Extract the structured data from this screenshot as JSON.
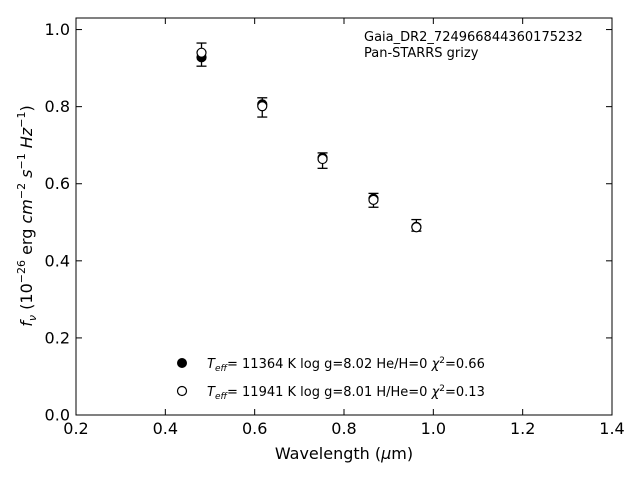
{
  "chart_data": {
    "type": "scatter",
    "xlabel_main": "Wavelength (",
    "xlabel_mu": "μ",
    "xlabel_unit": "m)",
    "ylabel": {
      "f": "f",
      "nu": "ν",
      "open": " (10",
      "exp1": "−26",
      "erg": " erg ",
      "cm": "cm",
      "exp2": "−2",
      "s": " s",
      "exp3": "−1",
      "hz": " Hz",
      "exp4": "−1",
      "close": ")"
    },
    "xlim": [
      0.2,
      1.4
    ],
    "ylim": [
      0.0,
      1.03
    ],
    "xticks": [
      0.2,
      0.4,
      0.6,
      0.8,
      1.0,
      1.2,
      1.4
    ],
    "xtick_labels": [
      "0.2",
      "0.4",
      "0.6",
      "0.8",
      "1.0",
      "1.2",
      "1.4"
    ],
    "yticks": [
      0.0,
      0.2,
      0.4,
      0.6,
      0.8,
      1.0
    ],
    "ytick_labels": [
      "0.0",
      "0.2",
      "0.4",
      "0.6",
      "0.8",
      "1.0"
    ],
    "annotation": [
      "Gaia_DR2_724966844360175232",
      "Pan-STARRS grizy"
    ],
    "observed": {
      "x": [
        0.481,
        0.617,
        0.752,
        0.866,
        0.962
      ],
      "y": [
        0.935,
        0.798,
        0.66,
        0.557,
        0.492
      ],
      "yerr": [
        0.03,
        0.025,
        0.02,
        0.018,
        0.015
      ]
    },
    "series": [
      {
        "marker": "filled",
        "x": [
          0.481,
          0.617,
          0.752,
          0.866,
          0.962
        ],
        "y": [
          0.928,
          0.806,
          0.667,
          0.561,
          0.488
        ],
        "legend": {
          "teff": "T",
          "eff_sub": "eff",
          "rest1": "= 11364 K  log g=8.02  He/H=0  ",
          "chi": "χ",
          "chi_sup": "2",
          "rest2": "=0.66"
        }
      },
      {
        "marker": "open",
        "x": [
          0.481,
          0.617,
          0.752,
          0.866,
          0.962
        ],
        "y": [
          0.94,
          0.801,
          0.664,
          0.558,
          0.487
        ],
        "legend": {
          "teff": "T",
          "eff_sub": "eff",
          "rest1": "= 11941 K  log g=8.01  H/He=0  ",
          "chi": "χ",
          "chi_sup": "2",
          "rest2": "=0.13"
        }
      }
    ],
    "grid": false,
    "legend_position": "bottom-center"
  }
}
